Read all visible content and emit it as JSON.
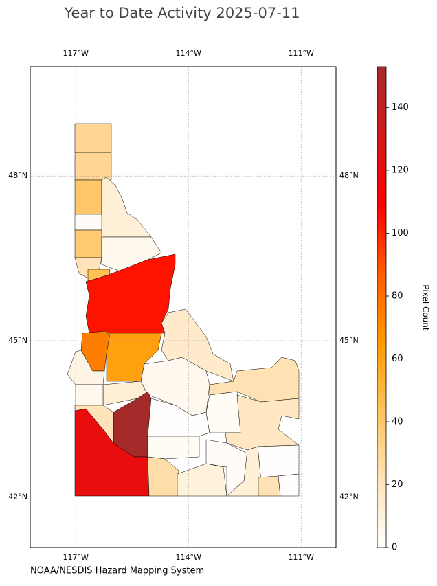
{
  "chart_data": {
    "type": "choropleth",
    "title": "Year to Date Activity 2025-07-11",
    "footer": "NOAA/NESDIS Hazard Mapping System",
    "xlim": [
      -118.21,
      -110.07
    ],
    "ylim": [
      41.0,
      49.9
    ],
    "xticks": [
      {
        "value": -117,
        "label": "117°W"
      },
      {
        "value": -114,
        "label": "114°W"
      },
      {
        "value": -111,
        "label": "111°W"
      }
    ],
    "yticks": [
      {
        "value": 48,
        "label": "48°N"
      },
      {
        "value": 45,
        "label": "45°N"
      },
      {
        "value": 42,
        "label": "42°N"
      }
    ],
    "grid": true,
    "colorbar_label": "Pixel Count",
    "clim": [
      0,
      153
    ],
    "cticks": [
      0,
      20,
      40,
      60,
      80,
      100,
      120,
      140
    ],
    "colormap": [
      "#ffffff",
      "#ffe2b5",
      "#ffc25a",
      "#ff9a00",
      "#ff5a00",
      "#ff0000",
      "#d21a1a",
      "#a52a2a"
    ],
    "region_values": [
      30,
      30,
      40,
      12,
      2,
      38,
      5,
      20,
      45,
      105,
      75,
      62,
      15,
      8,
      5,
      12,
      5,
      153,
      120,
      20,
      1,
      3,
      25,
      10,
      22,
      3,
      18,
      2,
      12,
      1,
      22,
      1
    ]
  }
}
